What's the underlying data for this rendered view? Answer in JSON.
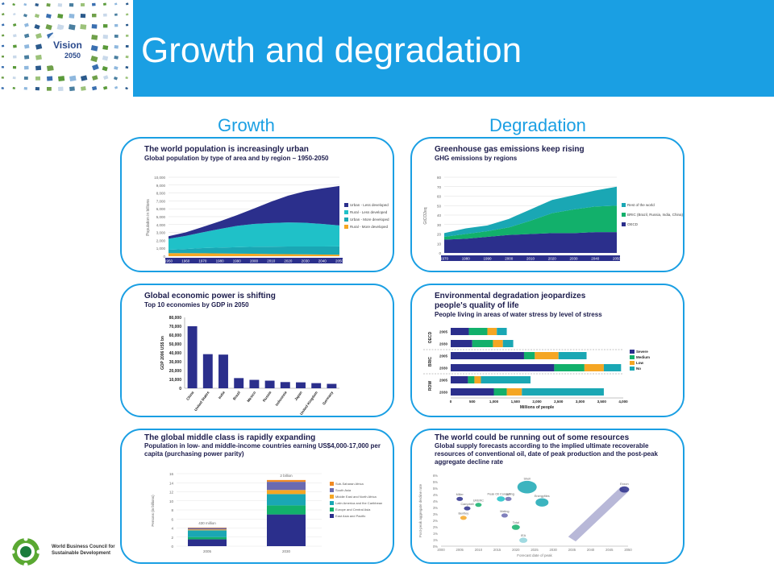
{
  "slide": {
    "title": "Growth and degradation"
  },
  "logo": {
    "line1": "Vision",
    "line2": "2050"
  },
  "columns": {
    "left": "Growth",
    "right": "Degradation"
  },
  "footer": {
    "org_name": "World Business Council for Sustainable Development"
  },
  "colors": {
    "accent": "#1a9fe3",
    "navy": "#2b2f8c",
    "teal": "#1aa7b4",
    "green": "#12b06b",
    "orange": "#f5a623"
  },
  "panels": {
    "population": {
      "title": "The world population is increasingly urban",
      "subtitle": "Global population by type of area and by region – 1950-2050",
      "ylabel": "Population in billions",
      "yticks": [
        "10,000",
        "9,000",
        "8,000",
        "7,000",
        "6,000",
        "5,000",
        "4,000",
        "3,000",
        "2,000",
        "1,000",
        "0"
      ],
      "xticks": [
        "1950",
        "1960",
        "1970",
        "1980",
        "1990",
        "2000",
        "2010",
        "2020",
        "2030",
        "2040",
        "2050"
      ],
      "legend": [
        "Urban - Less developed",
        "Rural - Less developed",
        "Urban - More developed",
        "Rural - More developed"
      ]
    },
    "ghg": {
      "title": "Greenhouse gas emissions keep rising",
      "subtitle": "GHG emissions by regions",
      "ylabel": "GtCO2eq",
      "yticks": [
        "80",
        "70",
        "60",
        "50",
        "40",
        "30",
        "20",
        "10",
        "0"
      ],
      "xticks": [
        "1970",
        "1980",
        "1990",
        "2000",
        "2010",
        "2020",
        "2030",
        "2040",
        "2050"
      ],
      "legend": [
        "Rest of the world",
        "BRIC (Brazil, Russia, India, China)",
        "OECD"
      ]
    },
    "gdp": {
      "title": "Global economic power is shifting",
      "subtitle": "Top 10 economies by GDP in 2050",
      "ylabel": "GDP 2006 US$ bn",
      "yticks": [
        "80,000",
        "70,000",
        "60,000",
        "50,000",
        "40,000",
        "30,000",
        "20,000",
        "10,000",
        "0"
      ]
    },
    "water": {
      "title": "Environmental degradation jeopardizes",
      "title2": "people's quality of life",
      "subtitle": "People living in areas of water stress by level of stress",
      "xlabel": "Millions of people",
      "xticks": [
        "0",
        "500",
        "1,000",
        "1,500",
        "2,000",
        "2,500",
        "3,000",
        "3,500",
        "4,000"
      ],
      "groups": [
        "OECD",
        "BRIC",
        "ROW"
      ],
      "years": [
        "2005",
        "2030",
        "2005",
        "2030",
        "2005",
        "2030"
      ],
      "legend": [
        "Severe",
        "Medium",
        "Low",
        "No"
      ]
    },
    "middle_class": {
      "title": "The global middle class is rapidly expanding",
      "subtitle": "Population in low- and middle-income countries earning US$4,000-17,000 per capita (purchasing power parity)",
      "ylabel": "Persons (in billions)",
      "yticks": [
        "16",
        "14",
        "12",
        "10",
        "8",
        "6",
        "4",
        "2",
        "0"
      ],
      "xticks": [
        "2005",
        "2030"
      ],
      "bar_labels": [
        "430 million",
        "2 billion"
      ],
      "legend": [
        "Sub-Saharan Africa",
        "South Asia",
        "Middle East and North Africa",
        "Latin America and the Caribbean",
        "Europe and Central Asia",
        "East Asia and Pacific"
      ]
    },
    "resources": {
      "title": "The world could be running out of some resources",
      "subtitle": "Global supply forecasts according to the implied ultimate recoverable resources of conventional oil, date of peak production and the post-peak aggregate decline rate",
      "ylabel": "Post-peak aggregate decline rate",
      "xlabel": "Forecast date of peak",
      "yticks": [
        "6%",
        "5%",
        "5%",
        "4%",
        "4%",
        "3%",
        "3%",
        "2%",
        "2%",
        "1%",
        "1%",
        "0%"
      ],
      "xticks": [
        "2000",
        "2005",
        "2010",
        "2015",
        "2020",
        "2025",
        "2030",
        "2035",
        "2040",
        "2045",
        "2050"
      ],
      "bubble_labels": [
        "Shell",
        "Energyfiles",
        "BP",
        "Total",
        "Meling",
        "Campbell",
        "Bentley",
        "UKERC",
        "Miller",
        "IEA",
        "Exxon",
        "Peak Oil Consulting"
      ]
    }
  },
  "chart_data": [
    {
      "type": "area",
      "title": "The world population is increasingly urban",
      "subtitle": "Global population by type of area and by region – 1950-2050",
      "ylabel": "Population in billions",
      "x": [
        1950,
        1960,
        1970,
        1980,
        1990,
        2000,
        2010,
        2020,
        2030,
        2040,
        2050
      ],
      "ylim": [
        0,
        10000
      ],
      "series": [
        {
          "name": "Rural - More developed",
          "values": [
            380,
            380,
            370,
            340,
            320,
            300,
            270,
            250,
            230,
            210,
            190
          ]
        },
        {
          "name": "Urban - More developed",
          "values": [
            430,
            530,
            650,
            750,
            820,
            880,
            930,
            970,
            1000,
            1020,
            1050
          ]
        },
        {
          "name": "Rural - Less developed",
          "values": [
            1400,
            1650,
            2000,
            2350,
            2700,
            2900,
            3000,
            3050,
            3000,
            2850,
            2650
          ]
        },
        {
          "name": "Urban - Less developed",
          "values": [
            310,
            450,
            680,
            970,
            1350,
            1950,
            2700,
            3400,
            4000,
            4500,
            5000
          ]
        }
      ],
      "legend": "right"
    },
    {
      "type": "area",
      "title": "Greenhouse gas emissions keep rising",
      "subtitle": "GHG emissions by regions",
      "ylabel": "GtCO2eq",
      "x": [
        1970,
        1980,
        1990,
        2000,
        2010,
        2020,
        2030,
        2040,
        2050
      ],
      "ylim": [
        0,
        80
      ],
      "series": [
        {
          "name": "OECD",
          "values": [
            14,
            15,
            17,
            19,
            20,
            21,
            21,
            22,
            22
          ]
        },
        {
          "name": "BRIC (Brazil, Russia, India, China)",
          "values": [
            3,
            5,
            6,
            8,
            14,
            21,
            25,
            27,
            28
          ]
        },
        {
          "name": "Rest of the world",
          "values": [
            4,
            6,
            6,
            9,
            12,
            14,
            15,
            17,
            20
          ]
        }
      ],
      "legend": "right"
    },
    {
      "type": "bar",
      "title": "Global economic power is shifting",
      "subtitle": "Top 10 economies by GDP in 2050",
      "ylabel": "GDP 2006 US$ bn",
      "categories": [
        "China",
        "United States",
        "India",
        "Brazil",
        "Mexico",
        "Russia",
        "Indonesia",
        "Japan",
        "United Kingdom",
        "Germany"
      ],
      "values": [
        70000,
        38500,
        38000,
        11500,
        9500,
        8600,
        7000,
        6700,
        5800,
        5000
      ],
      "ylim": [
        0,
        80000
      ]
    },
    {
      "type": "bar",
      "title": "Environmental degradation jeopardizes people's quality of life",
      "subtitle": "People living in areas of water stress by level of stress",
      "xlabel": "Millions of people",
      "orientation": "horizontal",
      "stacked": true,
      "categories": [
        "OECD 2005",
        "OECD 2030",
        "BRIC 2005",
        "BRIC 2030",
        "ROW 2005",
        "ROW 2030"
      ],
      "xlim": [
        0,
        4000
      ],
      "series": [
        {
          "name": "Severe",
          "values": [
            420,
            500,
            1700,
            2400,
            400,
            1000
          ]
        },
        {
          "name": "Medium",
          "values": [
            430,
            480,
            250,
            700,
            150,
            300
          ]
        },
        {
          "name": "Low",
          "values": [
            220,
            230,
            550,
            450,
            150,
            350
          ]
        },
        {
          "name": "No",
          "values": [
            230,
            240,
            650,
            400,
            1150,
            1900
          ]
        }
      ],
      "legend": "right"
    },
    {
      "type": "bar",
      "title": "The global middle class is rapidly expanding",
      "subtitle": "Population in low- and middle-income countries earning US$4,000-17,000 per capita (purchasing power parity)",
      "ylabel": "Persons (in billions)",
      "stacked": true,
      "categories": [
        "2005",
        "2030"
      ],
      "ylim": [
        0,
        16
      ],
      "series": [
        {
          "name": "East Asia and Pacific",
          "values": [
            1.5,
            7.0
          ]
        },
        {
          "name": "Europe and Central Asia",
          "values": [
            0.5,
            2.0
          ]
        },
        {
          "name": "Latin America and the Caribbean",
          "values": [
            1.5,
            2.5
          ]
        },
        {
          "name": "Middle East and North Africa",
          "values": [
            0.2,
            0.9
          ]
        },
        {
          "name": "South Asia",
          "values": [
            0.3,
            1.8
          ]
        },
        {
          "name": "Sub-Saharan Africa",
          "values": [
            0.1,
            0.4
          ]
        }
      ],
      "legend": "right"
    },
    {
      "type": "scatter",
      "title": "The world could be running out of some resources",
      "xlabel": "Forecast date of peak",
      "ylabel": "Post-peak aggregate decline rate",
      "xlim": [
        2000,
        2050
      ],
      "ylim": [
        0,
        6
      ],
      "x": [
        2023,
        2027,
        2018,
        2020,
        2017,
        2007,
        2006,
        2010,
        2005,
        2022,
        2049,
        2016
      ],
      "series": [
        {
          "labels": [
            "Shell",
            "Energyfiles",
            "BP",
            "Total",
            "Meling",
            "Campbell",
            "Bentley",
            "UKERC",
            "Miller",
            "IEA",
            "Exxon",
            "Peak Oil Consulting"
          ],
          "values": [
            5.0,
            3.7,
            4.0,
            1.6,
            2.6,
            3.2,
            2.4,
            3.5,
            4.0,
            0.5,
            4.8,
            4.0
          ]
        }
      ]
    }
  ]
}
